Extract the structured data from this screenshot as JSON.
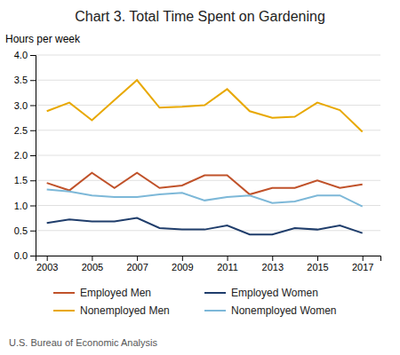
{
  "chart_data": {
    "type": "line",
    "title": "Chart 3. Total Time Spent on Gardening",
    "ylabel": "Hours per week",
    "annotations": [
      "U.S. Bureau of Economic Analysis"
    ],
    "x": [
      2003,
      2004,
      2005,
      2006,
      2007,
      2008,
      2009,
      2010,
      2011,
      2012,
      2013,
      2014,
      2015,
      2016,
      2017
    ],
    "series": [
      {
        "name": "Employed Men",
        "color": "#C0522A",
        "values": [
          1.45,
          1.3,
          1.65,
          1.35,
          1.65,
          1.35,
          1.4,
          1.6,
          1.6,
          1.22,
          1.35,
          1.35,
          1.5,
          1.35,
          1.42
        ]
      },
      {
        "name": "Employed Women",
        "color": "#1F3D6B",
        "values": [
          0.65,
          0.72,
          0.68,
          0.68,
          0.75,
          0.55,
          0.52,
          0.52,
          0.6,
          0.42,
          0.42,
          0.55,
          0.52,
          0.6,
          0.45
        ]
      },
      {
        "name": "Nonemployed Men",
        "color": "#E8A800",
        "values": [
          2.88,
          3.05,
          2.7,
          3.1,
          3.5,
          2.95,
          2.97,
          3.0,
          3.32,
          2.88,
          2.75,
          2.77,
          3.05,
          2.9,
          2.47
        ]
      },
      {
        "name": "Nonemployed Women",
        "color": "#7DB8D8",
        "values": [
          1.32,
          1.28,
          1.2,
          1.17,
          1.17,
          1.22,
          1.25,
          1.1,
          1.17,
          1.2,
          1.05,
          1.08,
          1.2,
          1.2,
          0.98
        ]
      }
    ],
    "xlim": [
      2002.5,
      2017.8
    ],
    "xticks": [
      2003,
      2005,
      2007,
      2009,
      2011,
      2013,
      2015,
      2017
    ],
    "ylim": [
      0.0,
      4.0
    ],
    "yticks": [
      {
        "value": 0.0,
        "label": "0.0"
      },
      0.5,
      {
        "value": 1.0,
        "label": "1.0"
      },
      1.5,
      {
        "value": 2.0,
        "label": "2.0"
      },
      2.5,
      {
        "value": 3.0,
        "label": "3.0"
      },
      3.5,
      {
        "value": 4.0,
        "label": "4.0"
      }
    ],
    "grid": true,
    "legend": "bottom"
  }
}
